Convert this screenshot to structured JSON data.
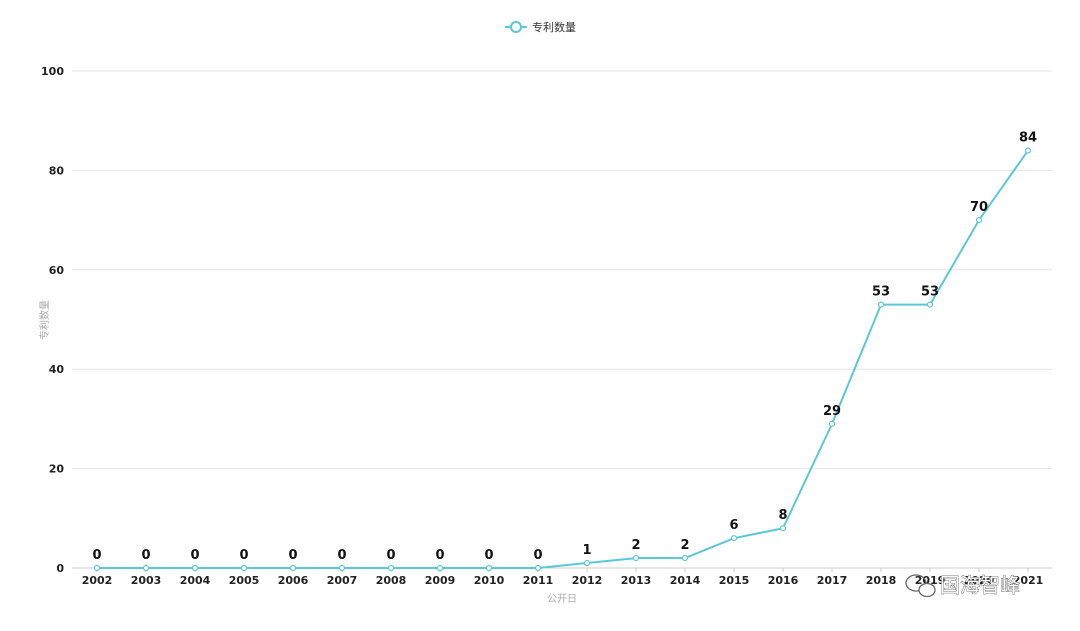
{
  "chart_data": {
    "type": "line",
    "legend": {
      "label": "专利数量",
      "position": "top-center"
    },
    "xlabel": "公开日",
    "ylabel": "专利数量",
    "ylim": [
      0,
      100
    ],
    "yticks": [
      "0",
      "20",
      "40",
      "60",
      "80",
      "100"
    ],
    "grid": "horizontal",
    "categories": [
      "2002",
      "2003",
      "2004",
      "2005",
      "2006",
      "2007",
      "2008",
      "2009",
      "2010",
      "2011",
      "2012",
      "2013",
      "2014",
      "2015",
      "2016",
      "2017",
      "2018",
      "2019",
      "2020",
      "2021"
    ],
    "series": [
      {
        "name": "专利数量",
        "color": "#5bc8d7",
        "values": [
          0,
          0,
          0,
          0,
          0,
          0,
          0,
          0,
          0,
          0,
          1,
          2,
          2,
          6,
          8,
          29,
          53,
          53,
          70,
          84
        ]
      }
    ],
    "data_labels": [
      "0",
      "0",
      "0",
      "0",
      "0",
      "0",
      "0",
      "0",
      "0",
      "0",
      "1",
      "2",
      "2",
      "6",
      "8",
      "29",
      "53",
      "53",
      "70",
      "84"
    ]
  },
  "watermark": {
    "text": "国海智峰",
    "icon": "wechat-icon"
  }
}
